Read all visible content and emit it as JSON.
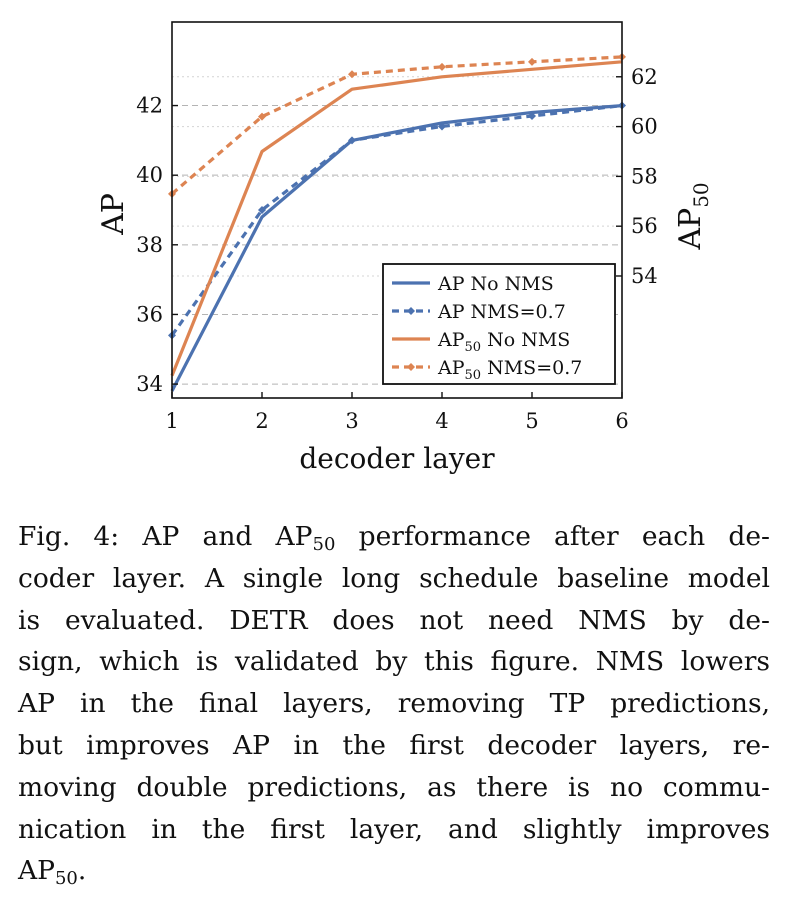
{
  "chart_data": {
    "type": "line",
    "xlabel": "decoder layer",
    "ylabel_left": "AP",
    "ylabel_right": "AP",
    "ylabel_right_sub": "50",
    "x": [
      1,
      2,
      3,
      4,
      5,
      6
    ],
    "x_ticks": [
      "1",
      "2",
      "3",
      "4",
      "5",
      "6"
    ],
    "ylim_left": [
      33.6,
      44.4
    ],
    "ylim_right": [
      49.1,
      64.2
    ],
    "y_ticks_left": [
      "34",
      "36",
      "38",
      "40",
      "42"
    ],
    "y_ticks_right": [
      "54",
      "56",
      "58",
      "60",
      "62"
    ],
    "grid": "dashed-horizontal",
    "legend_position": "bottom-right",
    "series": [
      {
        "name": "AP No NMS",
        "legend_sub": "",
        "legend_rest": "",
        "axis": "left",
        "color": "#4c72b0",
        "style": "solid",
        "marker": false,
        "values": [
          33.8,
          38.8,
          41.0,
          41.5,
          41.8,
          42.0
        ]
      },
      {
        "name": "AP NMS=0.7",
        "legend_sub": "",
        "legend_rest": "",
        "axis": "left",
        "color": "#4c72b0",
        "style": "dashed",
        "marker": true,
        "values": [
          35.4,
          39.0,
          41.0,
          41.4,
          41.7,
          42.0
        ]
      },
      {
        "name": "AP",
        "legend_sub": "50",
        "legend_rest": " No NMS",
        "axis": "right",
        "color": "#dd8452",
        "style": "solid",
        "marker": false,
        "values": [
          50.0,
          59.0,
          61.5,
          62.0,
          62.3,
          62.6
        ]
      },
      {
        "name": "AP",
        "legend_sub": "50",
        "legend_rest": " NMS=0.7",
        "axis": "right",
        "color": "#dd8452",
        "style": "dashed",
        "marker": true,
        "values": [
          57.3,
          60.4,
          62.1,
          62.4,
          62.6,
          62.8
        ]
      }
    ]
  },
  "caption": {
    "lines": [
      [
        {
          "t": "Fig. 4: AP and AP"
        },
        {
          "t": "50",
          "sub": true
        },
        {
          "t": " performance after each de-"
        }
      ],
      [
        {
          "t": "coder layer. A single long schedule baseline model"
        }
      ],
      [
        {
          "t": "is evaluated. DETR does not need NMS by de-"
        }
      ],
      [
        {
          "t": "sign, which is validated by this figure. NMS lowers"
        }
      ],
      [
        {
          "t": "AP in the final layers, removing TP predictions,"
        }
      ],
      [
        {
          "t": "but improves AP in the first decoder layers, re-"
        }
      ],
      [
        {
          "t": "moving double predictions, as there is no commu-"
        }
      ],
      [
        {
          "t": "nication in the first layer, and slightly improves"
        }
      ],
      [
        {
          "t": "AP"
        },
        {
          "t": "50",
          "sub": true
        },
        {
          "t": "."
        }
      ]
    ]
  }
}
